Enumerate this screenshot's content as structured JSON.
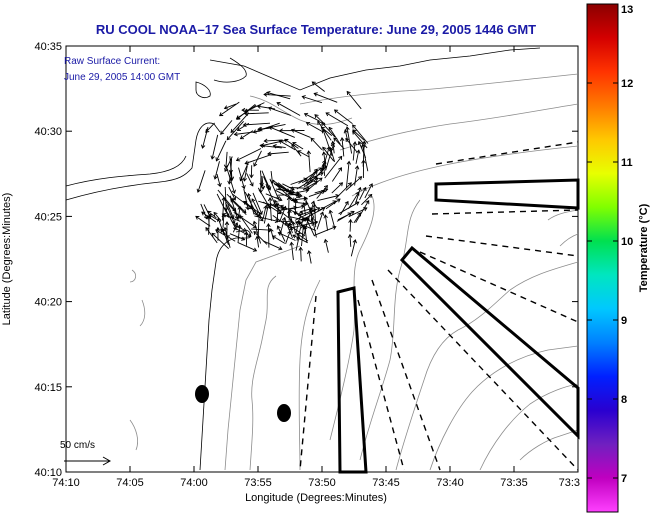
{
  "title": "RU COOL  NOAA–17  Sea Surface Temperature:  June 29, 2005 1446 GMT",
  "legend": {
    "line1": "Raw Surface Current:",
    "line2": "June 29, 2005 14:00 GMT"
  },
  "x_axis": {
    "label": "Longitude (Degrees:Minutes)",
    "ticks": [
      "74:10",
      "74:05",
      "74:00",
      "73:55",
      "73:50",
      "73:45",
      "73:40",
      "73:35",
      "73:3"
    ]
  },
  "y_axis": {
    "label": "Latitude (Degrees:Minutes)",
    "ticks": [
      "40:35",
      "40:30",
      "40:25",
      "40:20",
      "40:15",
      "40:10"
    ]
  },
  "colorbar": {
    "label": "Temperature (°C)",
    "ticks": [
      "13",
      "12",
      "11",
      "10",
      "9",
      "8",
      "7"
    ],
    "stops": [
      "#8b0000",
      "#d40000",
      "#ff3300",
      "#ff7a00",
      "#ffc800",
      "#e8ff00",
      "#80ff00",
      "#00e050",
      "#00e6c0",
      "#00c8ff",
      "#0080ff",
      "#0020ff",
      "#2a00d0",
      "#7020c0",
      "#c000c0",
      "#ff40ff"
    ]
  },
  "scale": {
    "label": "50 cm/s"
  },
  "colors": {
    "title": "#1a1aa6",
    "land_line": "#000000",
    "contour": "#8c8c8c",
    "frame": "#000000"
  }
}
